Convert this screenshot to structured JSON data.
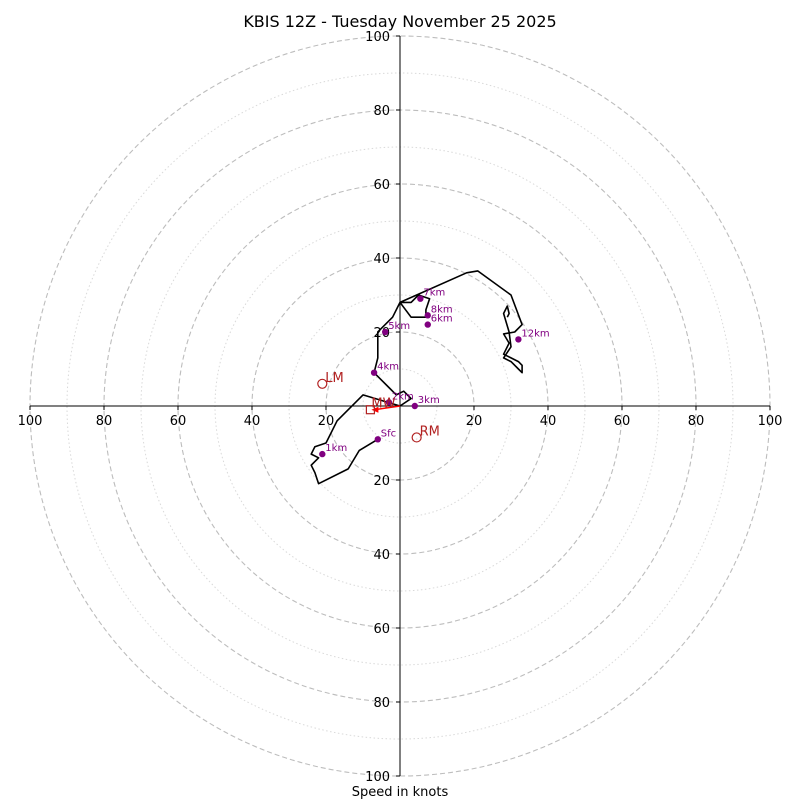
{
  "chart_data": {
    "type": "hodograph",
    "title": "KBIS 12Z - Tuesday November 25 2025",
    "xlabel": "Speed in knots",
    "ylabel": "",
    "units": "knots",
    "max_speed": 100,
    "major_rings": [
      20,
      40,
      60,
      80,
      100
    ],
    "minor_rings": [
      10,
      30,
      50,
      70,
      90
    ],
    "x_tick_labels": [
      "100",
      "80",
      "60",
      "40",
      "20",
      "20",
      "40",
      "60",
      "80",
      "100"
    ],
    "y_tick_labels": [
      "100",
      "80",
      "60",
      "40",
      "20",
      "20",
      "40",
      "60",
      "80",
      "100"
    ],
    "colors": {
      "trace": "#000000",
      "height_markers": "#800080",
      "storm_motion": "#b22222",
      "mean_wind_vector": "#ff0000",
      "major_ring": "#bdbdbd",
      "minor_ring": "#d9d9d9"
    },
    "trace": [
      [
        -6,
        -9
      ],
      [
        -11,
        -12
      ],
      [
        -14,
        -17
      ],
      [
        -22,
        -21
      ],
      [
        -23,
        -18
      ],
      [
        -24,
        -16
      ],
      [
        -22,
        -14
      ],
      [
        -24,
        -13
      ],
      [
        -23,
        -11
      ],
      [
        -20,
        -10
      ],
      [
        -17,
        -4
      ],
      [
        -10,
        3
      ],
      [
        0,
        0
      ],
      [
        3,
        2
      ],
      [
        1,
        4
      ],
      [
        -1,
        3
      ],
      [
        -3,
        5
      ],
      [
        -7,
        9
      ],
      [
        -6,
        13
      ],
      [
        -6,
        20
      ],
      [
        -2,
        24
      ],
      [
        0,
        28
      ],
      [
        3,
        28
      ],
      [
        5,
        30
      ],
      [
        8,
        29
      ],
      [
        7,
        26
      ],
      [
        7,
        24
      ],
      [
        3,
        24
      ],
      [
        0,
        28
      ],
      [
        18,
        36
      ],
      [
        21,
        36.5
      ],
      [
        30,
        30
      ],
      [
        33,
        22
      ],
      [
        31,
        20
      ],
      [
        28,
        19.5
      ],
      [
        29.5,
        17
      ],
      [
        28,
        14
      ],
      [
        30,
        13
      ],
      [
        32,
        12
      ],
      [
        33,
        11
      ],
      [
        33,
        9
      ],
      [
        32,
        10
      ],
      [
        30,
        12
      ],
      [
        28,
        13
      ],
      [
        30,
        16
      ],
      [
        29.5,
        20
      ],
      [
        28,
        25
      ],
      [
        29,
        27
      ],
      [
        29.5,
        25
      ],
      [
        29,
        24
      ]
    ],
    "height_markers": [
      {
        "label": "Sfc",
        "u": -6,
        "v": -9
      },
      {
        "label": "1km",
        "u": -21,
        "v": -13
      },
      {
        "label": "2km",
        "u": -3,
        "v": 1
      },
      {
        "label": "3km",
        "u": 4,
        "v": 0
      },
      {
        "label": "4km",
        "u": -7,
        "v": 9
      },
      {
        "label": "5km",
        "u": -4,
        "v": 20
      },
      {
        "label": "6km",
        "u": 7.5,
        "v": 22
      },
      {
        "label": "7km",
        "u": 5.5,
        "v": 29
      },
      {
        "label": "8km",
        "u": 7.5,
        "v": 24.5
      },
      {
        "label": "12km",
        "u": 32,
        "v": 18
      }
    ],
    "storm_motions": [
      {
        "label": "LM",
        "u": -21,
        "v": 6
      },
      {
        "label": "RM",
        "u": 4.5,
        "v": -8.5
      }
    ],
    "mean_wind": {
      "label": "MW",
      "u": -8,
      "v": -1
    }
  }
}
